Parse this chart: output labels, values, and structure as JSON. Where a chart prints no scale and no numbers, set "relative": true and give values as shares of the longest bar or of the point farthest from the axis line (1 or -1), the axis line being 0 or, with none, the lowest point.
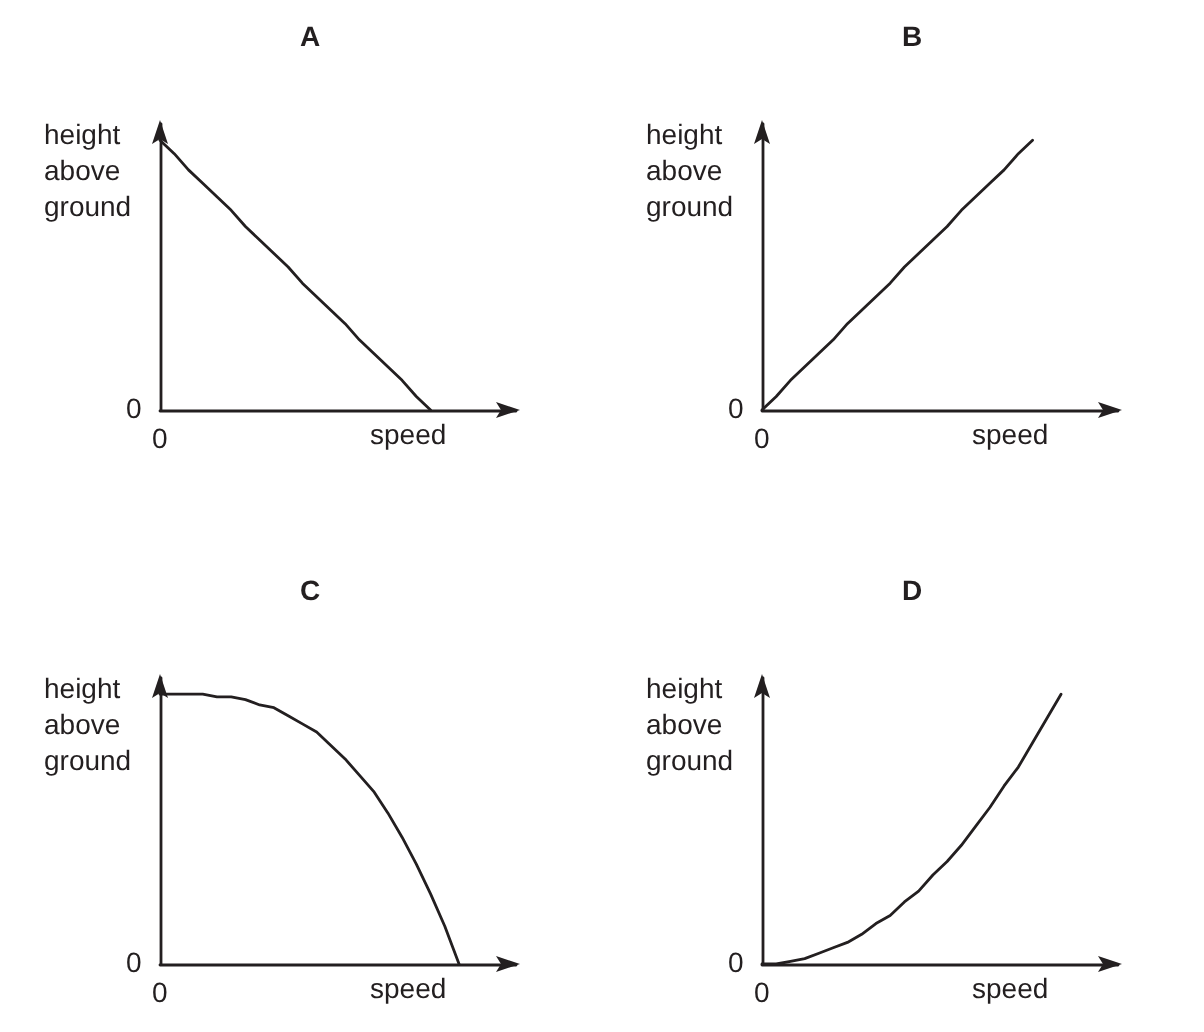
{
  "chart_data": [
    {
      "type": "line",
      "title": "A",
      "xlabel": "speed",
      "ylabel": "height above ground",
      "relative": true,
      "marker": "none",
      "annotations": [
        "0",
        "0"
      ],
      "categories": [
        null,
        null,
        null,
        null,
        null,
        null,
        null,
        null,
        null,
        null,
        null,
        null,
        null,
        null,
        null,
        null,
        null,
        null,
        null,
        null,
        null,
        null,
        null,
        null,
        null,
        null
      ],
      "series": [
        {
          "color": "#231f20",
          "values": [
            1,
            0.95,
            0.89,
            0.84,
            0.79,
            0.74,
            0.68,
            0.63,
            0.58,
            0.53,
            0.47,
            0.42,
            0.37,
            0.32,
            0.26,
            0.21,
            0.16,
            0.11,
            0.05,
            0,
            null,
            null,
            null,
            null,
            null,
            null
          ]
        }
      ]
    },
    {
      "type": "line",
      "title": "B",
      "xlabel": "speed",
      "ylabel": "height above ground",
      "relative": true,
      "marker": "none",
      "annotations": [
        "0",
        "0"
      ],
      "categories": [
        null,
        null,
        null,
        null,
        null,
        null,
        null,
        null,
        null,
        null,
        null,
        null,
        null,
        null,
        null,
        null,
        null,
        null,
        null,
        null,
        null,
        null,
        null,
        null,
        null,
        null
      ],
      "series": [
        {
          "color": "#231f20",
          "values": [
            0,
            0.05,
            0.11,
            0.16,
            0.21,
            0.26,
            0.32,
            0.37,
            0.42,
            0.47,
            0.53,
            0.58,
            0.63,
            0.68,
            0.74,
            0.79,
            0.84,
            0.89,
            0.95,
            1,
            null,
            null,
            null,
            null,
            null,
            null
          ]
        }
      ]
    },
    {
      "type": "line",
      "title": "C",
      "xlabel": "speed",
      "ylabel": "height above ground",
      "relative": true,
      "marker": "none",
      "annotations": [
        "0",
        "0"
      ],
      "categories": [
        null,
        null,
        null,
        null,
        null,
        null,
        null,
        null,
        null,
        null,
        null,
        null,
        null,
        null,
        null,
        null,
        null,
        null,
        null,
        null,
        null,
        null,
        null,
        null,
        null,
        null
      ],
      "series": [
        {
          "color": "#231f20",
          "values": [
            1,
            1,
            1,
            1,
            0.99,
            0.99,
            0.98,
            0.96,
            0.95,
            0.92,
            0.89,
            0.86,
            0.81,
            0.76,
            0.7,
            0.64,
            0.56,
            0.47,
            0.37,
            0.26,
            0.14,
            0,
            null,
            null,
            null,
            null
          ]
        }
      ]
    },
    {
      "type": "line",
      "title": "D",
      "xlabel": "speed",
      "ylabel": "height above ground",
      "relative": true,
      "marker": "none",
      "annotations": [
        "0",
        "0"
      ],
      "categories": [
        null,
        null,
        null,
        null,
        null,
        null,
        null,
        null,
        null,
        null,
        null,
        null,
        null,
        null,
        null,
        null,
        null,
        null,
        null,
        null,
        null,
        null,
        null,
        null,
        null,
        null
      ],
      "series": [
        {
          "color": "#231f20",
          "values": [
            0,
            0,
            0.01,
            0.02,
            0.04,
            0.06,
            0.08,
            0.11,
            0.15,
            0.18,
            0.23,
            0.27,
            0.33,
            0.38,
            0.44,
            0.51,
            0.58,
            0.66,
            0.73,
            0.82,
            0.91,
            1,
            null,
            null,
            null,
            null
          ]
        }
      ]
    }
  ]
}
